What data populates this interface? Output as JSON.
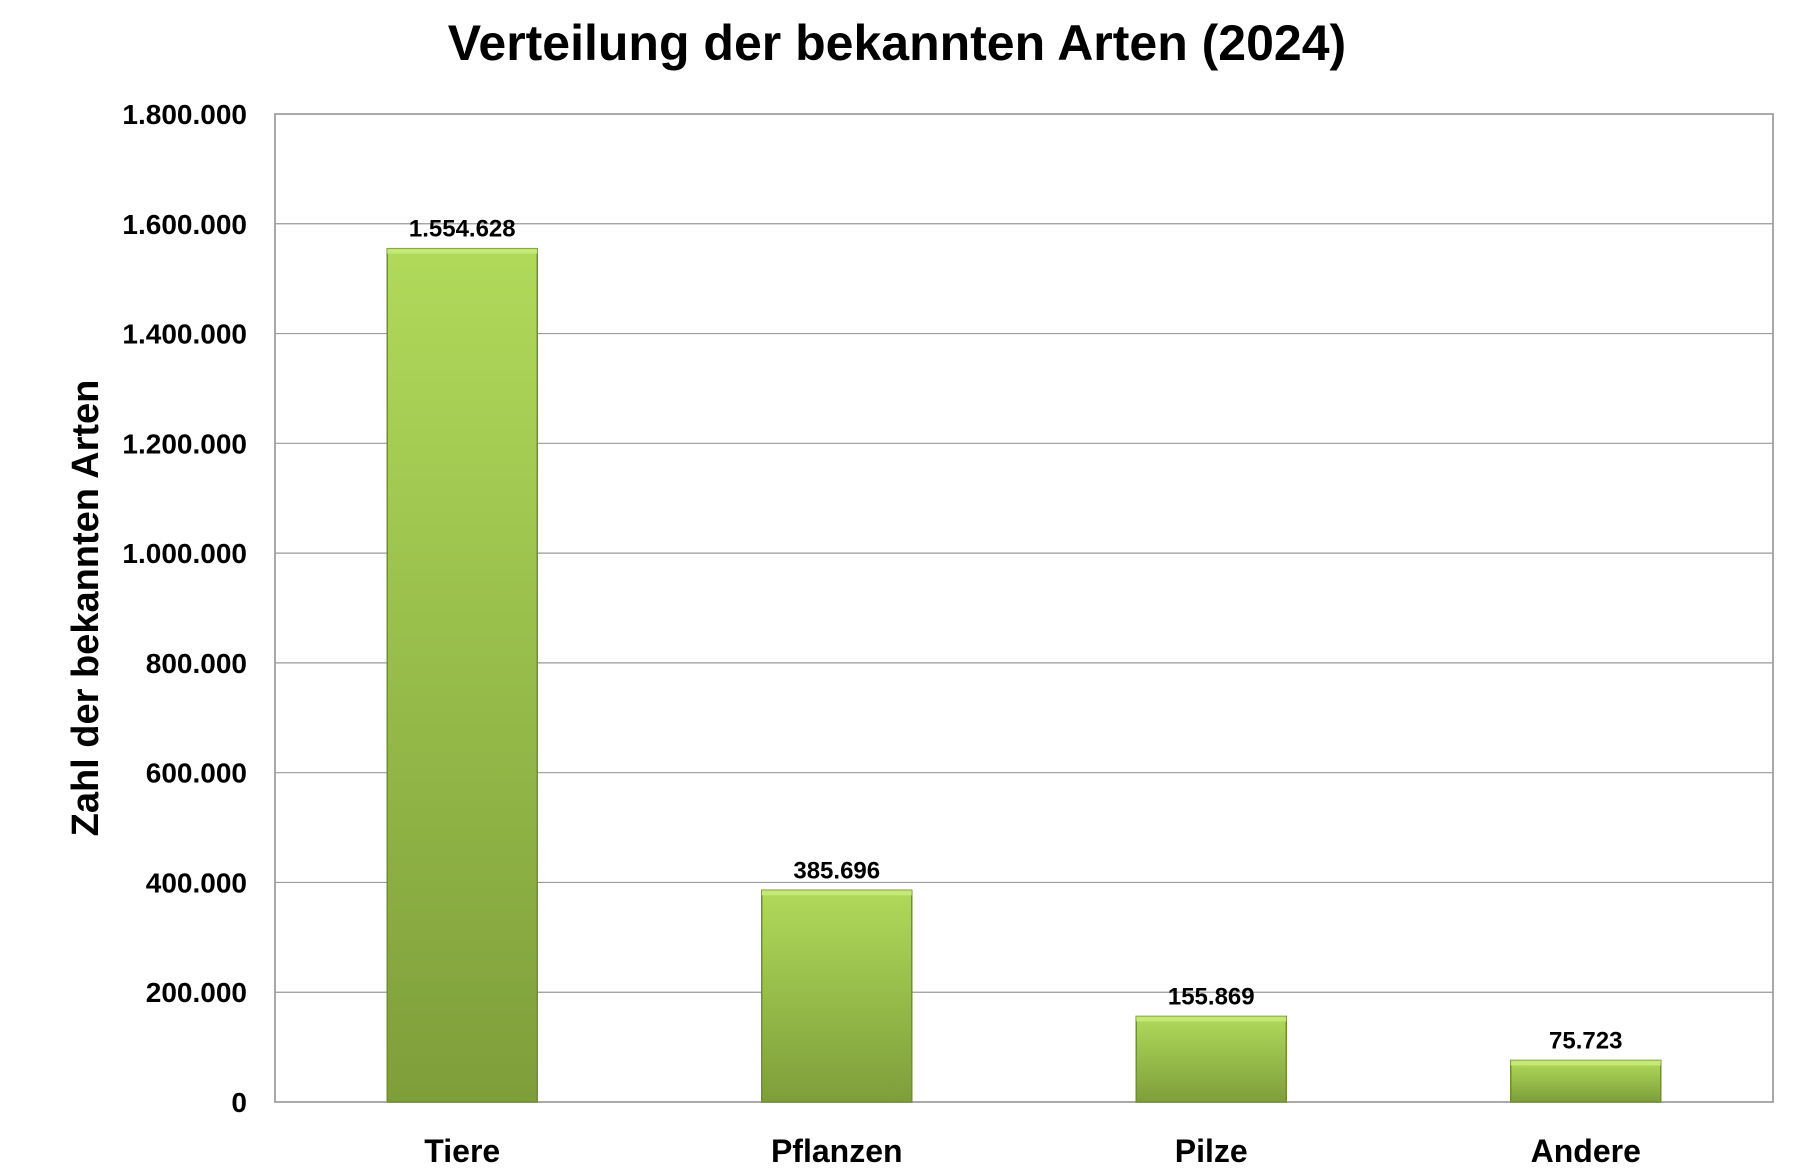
{
  "chart_data": {
    "type": "bar",
    "title": "Verteilung der bekannten Arten (2024)",
    "xlabel": "",
    "ylabel": "Zahl der bekannten Arten",
    "categories": [
      "Tiere",
      "Pflanzen",
      "Pilze",
      "Andere"
    ],
    "values": [
      1554628,
      385696,
      155869,
      75723
    ],
    "data_labels": [
      "1.554.628",
      "385.696",
      "155.869",
      "75.723"
    ],
    "ylim": [
      0,
      1800000
    ],
    "yticks": [
      0,
      200000,
      400000,
      600000,
      800000,
      1000000,
      1200000,
      1400000,
      1600000,
      1800000
    ],
    "ytick_labels": [
      "0",
      "200.000",
      "400.000",
      "600.000",
      "800.000",
      "1.000.000",
      "1.200.000",
      "1.400.000",
      "1.600.000",
      "1.800.000"
    ],
    "grid": true,
    "legend": "none",
    "colors": {
      "bar_top": "#b0da5a",
      "bar_bottom": "#7e9e3a",
      "bar_edge": "#6f8f30",
      "grid": "#9a9a9a",
      "axis": "#8c8c8c",
      "text": "#000000"
    }
  }
}
